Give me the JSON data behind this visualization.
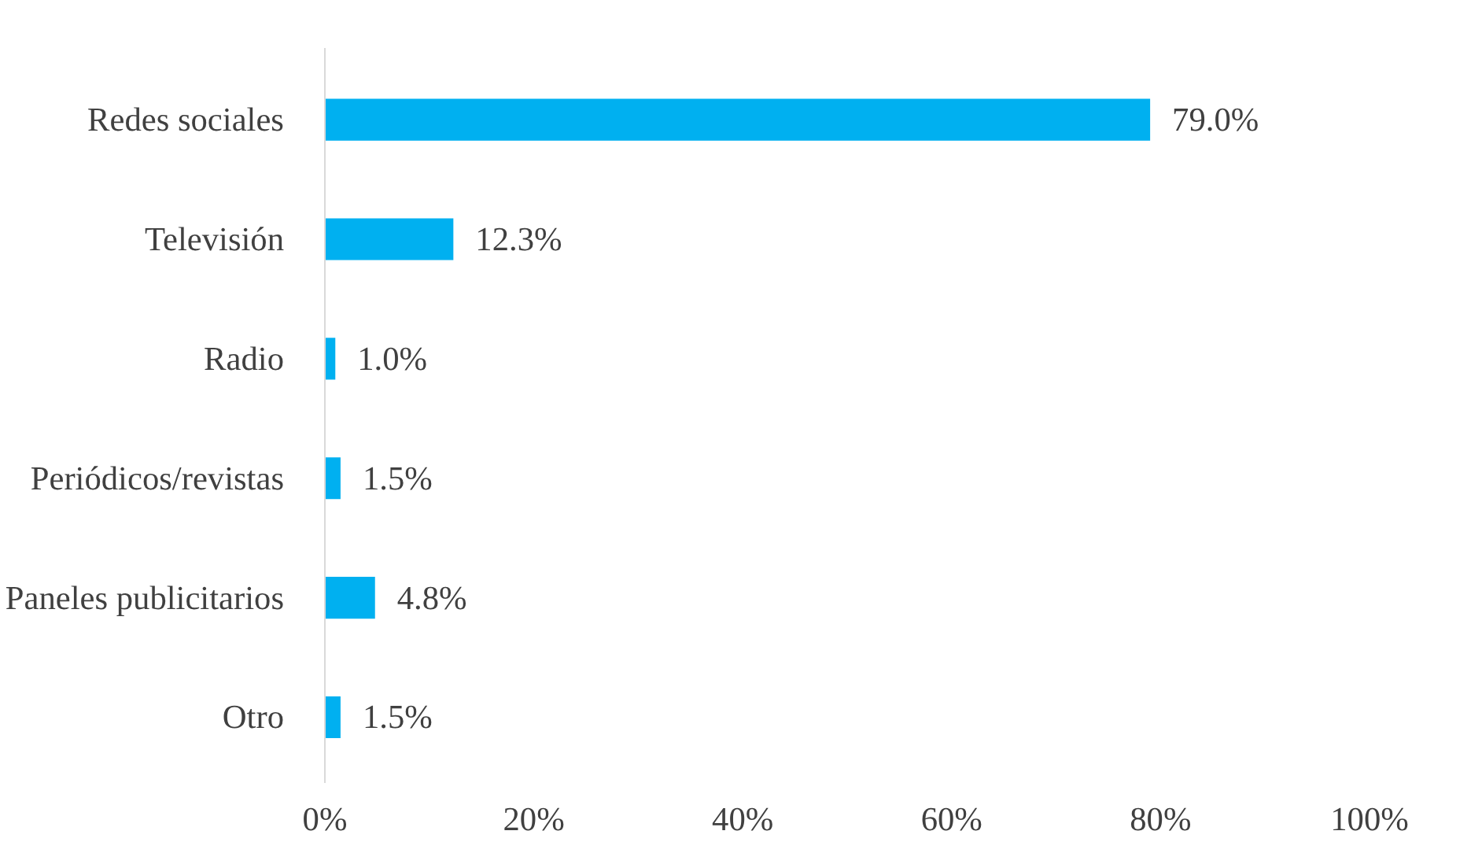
{
  "chart_data": {
    "type": "bar",
    "orientation": "horizontal",
    "categories": [
      "Redes sociales",
      "Televisión",
      "Radio",
      "Periódicos/revistas",
      "Paneles publicitarios",
      "Otro"
    ],
    "values": [
      79.0,
      12.3,
      1.0,
      1.5,
      4.8,
      1.5
    ],
    "value_labels": [
      "79.0%",
      "12.3%",
      "1.0%",
      "1.5%",
      "4.8%",
      "1.5%"
    ],
    "color": "#00b0f0",
    "xlim": [
      0,
      100
    ],
    "xticks": [
      {
        "value": 0,
        "label": "0%"
      },
      {
        "value": 20,
        "label": "20%"
      },
      {
        "value": 40,
        "label": "40%"
      },
      {
        "value": 60,
        "label": "60%"
      },
      {
        "value": 80,
        "label": "80%"
      },
      {
        "value": 100,
        "label": "100%"
      }
    ],
    "grid": false
  }
}
